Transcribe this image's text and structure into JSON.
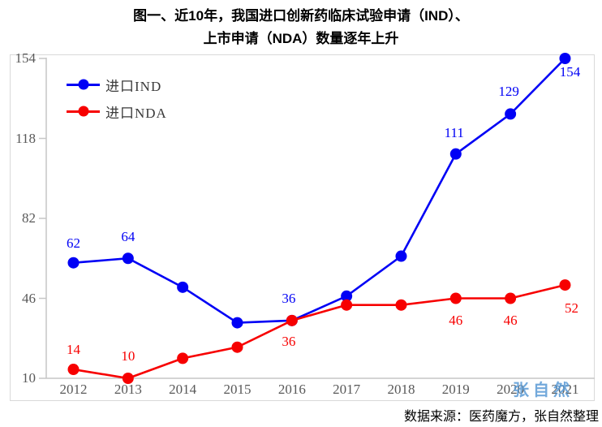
{
  "title": {
    "line1": "图一、近10年，我国进口创新药临床试验申请（IND）、",
    "line2": "上市申请（NDA）数量逐年上升"
  },
  "source": {
    "text": "数据来源：医药魔方，张自然整理"
  },
  "watermark": {
    "text": "张自然"
  },
  "colors": {
    "ind_blue": "#0000f5",
    "nda_red": "#f70000",
    "axis_line": "#c6c6c6",
    "plot_border": "#d9d9d9",
    "tick_text": "#595959",
    "watermark_blue": "#5b9bd5"
  },
  "chart_data": {
    "type": "line",
    "title": "图一、近10年，我国进口创新药临床试验申请（IND）、上市申请（NDA）数量逐年上升",
    "xlabel": "",
    "ylabel": "",
    "categories": [
      "2012",
      "2013",
      "2014",
      "2015",
      "2016",
      "2017",
      "2018",
      "2019",
      "2020",
      "2021"
    ],
    "yticks": [
      10,
      46,
      82,
      118,
      154
    ],
    "ylim": [
      10,
      154
    ],
    "grid": false,
    "legend_position": "top-left",
    "series": [
      {
        "name": "进口IND",
        "color": "#0000f5",
        "values": [
          62,
          64,
          51,
          35,
          36,
          47,
          65,
          111,
          129,
          154
        ],
        "labels": [
          {
            "i": 0,
            "text": "62",
            "dx": 0,
            "dy": -24
          },
          {
            "i": 1,
            "text": "64",
            "dx": 0,
            "dy": -26
          },
          {
            "i": 4,
            "text": "36",
            "dx": -4,
            "dy": -27
          },
          {
            "i": 7,
            "text": "111",
            "dx": -2,
            "dy": -26
          },
          {
            "i": 8,
            "text": "129",
            "dx": -2,
            "dy": -27
          },
          {
            "i": 9,
            "text": "154",
            "dx": 6,
            "dy": 17
          }
        ]
      },
      {
        "name": "进口NDA",
        "color": "#f70000",
        "values": [
          14,
          10,
          19,
          24,
          36,
          43,
          43,
          46,
          46,
          52
        ],
        "labels": [
          {
            "i": 0,
            "text": "14",
            "dx": 0,
            "dy": -24
          },
          {
            "i": 1,
            "text": "10",
            "dx": 0,
            "dy": -27
          },
          {
            "i": 4,
            "text": "36",
            "dx": -4,
            "dy": 26
          },
          {
            "i": 7,
            "text": "46",
            "dx": 0,
            "dy": 27
          },
          {
            "i": 8,
            "text": "46",
            "dx": 0,
            "dy": 27
          },
          {
            "i": 9,
            "text": "52",
            "dx": 8,
            "dy": 29
          }
        ]
      }
    ]
  }
}
